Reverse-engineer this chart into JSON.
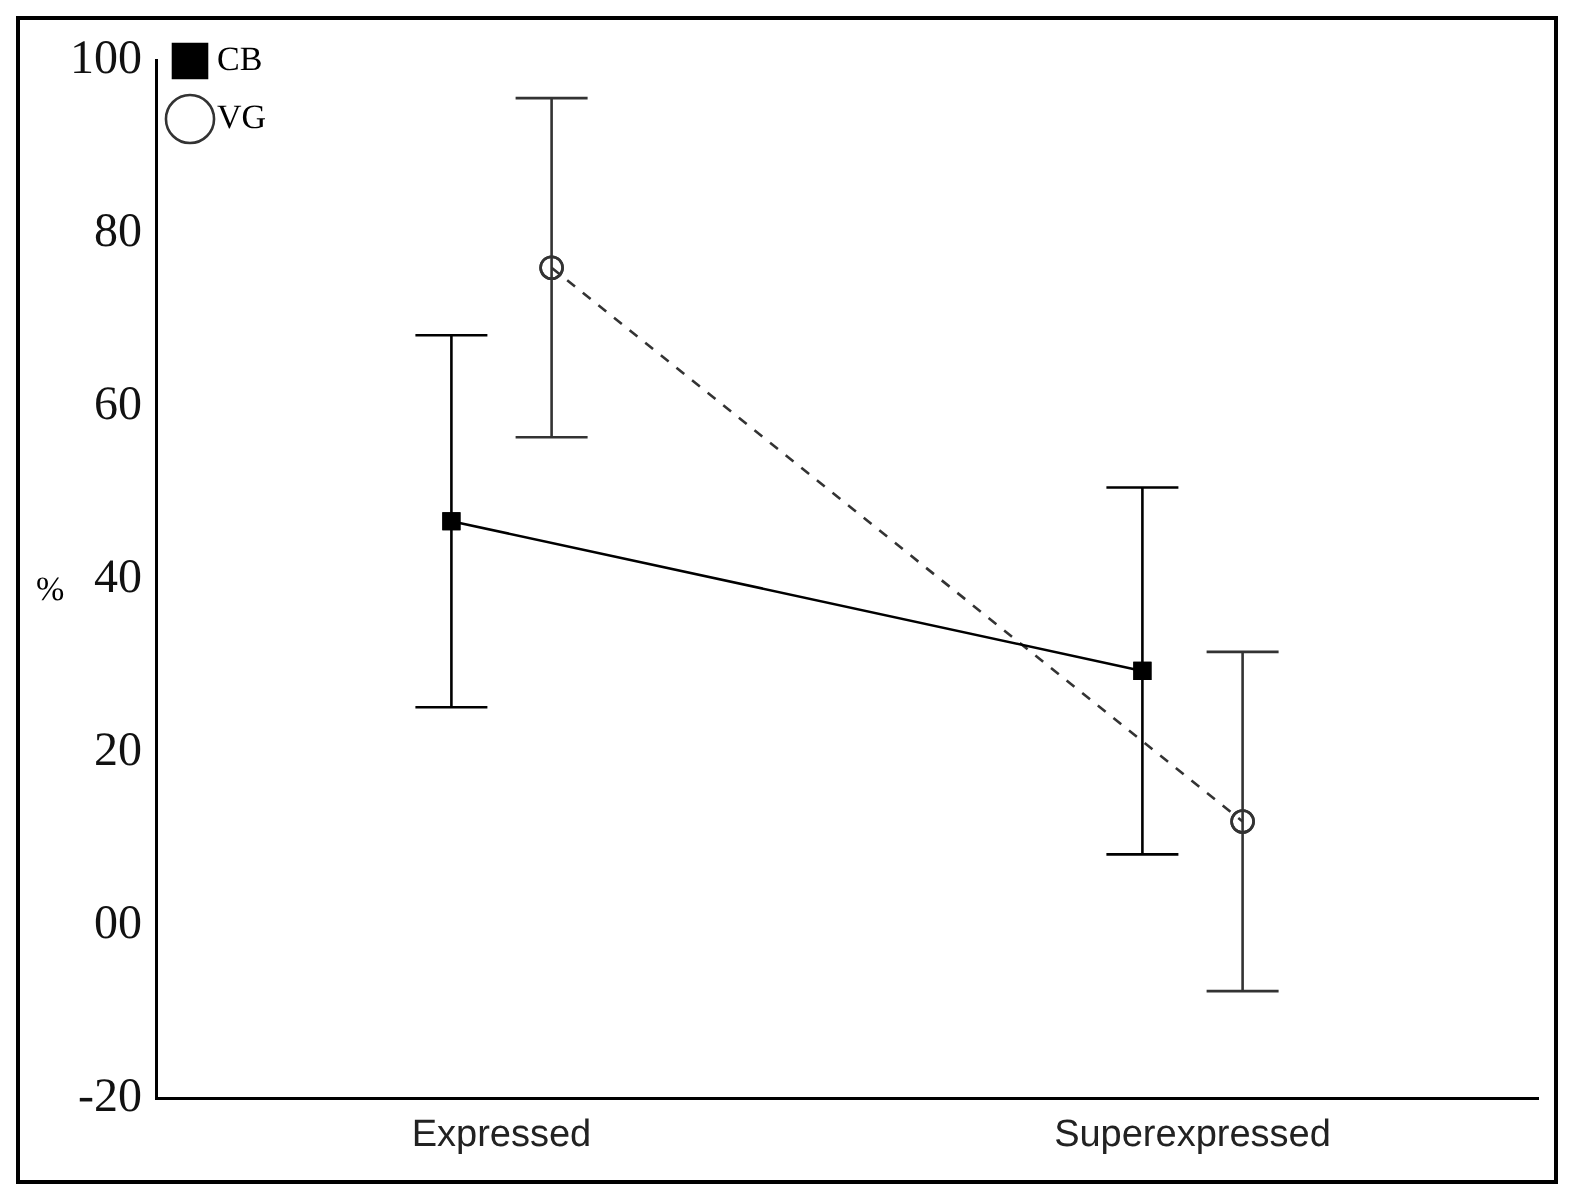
{
  "chart_data": {
    "type": "line",
    "ylabel": "%",
    "categories": [
      "Expressed",
      "Superexpressed"
    ],
    "series": [
      {
        "name": "CB",
        "color": "#000000",
        "values": [
          46.7,
          29.4
        ],
        "errors": [
          21.5,
          21.2
        ],
        "marker": "square",
        "line_style": "solid"
      },
      {
        "name": "VG",
        "color": "#333333",
        "values": [
          76.0,
          12.0
        ],
        "errors": [
          19.6,
          19.6
        ],
        "marker": "circle",
        "line_style": "dashed"
      }
    ],
    "ylim": [
      -20,
      100
    ],
    "yticks": [
      -20,
      {
        "value": 0,
        "label": "00"
      },
      20,
      40,
      60,
      80,
      100
    ],
    "grid": false,
    "legend": "top left"
  }
}
